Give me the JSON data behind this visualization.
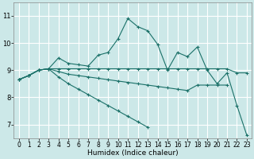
{
  "xlabel": "Humidex (Indice chaleur)",
  "bg_color": "#cce8e8",
  "grid_color": "#ffffff",
  "line_color": "#1a7068",
  "xlim": [
    -0.5,
    23.5
  ],
  "ylim": [
    6.5,
    11.5
  ],
  "yticks": [
    7,
    8,
    9,
    10,
    11
  ],
  "xticks": [
    0,
    1,
    2,
    3,
    4,
    5,
    6,
    7,
    8,
    9,
    10,
    11,
    12,
    13,
    14,
    15,
    16,
    17,
    18,
    19,
    20,
    21,
    22,
    23
  ],
  "series": [
    [
      8.65,
      8.8,
      9.0,
      9.05,
      9.45,
      9.25,
      9.2,
      9.15,
      9.55,
      9.65,
      10.15,
      10.9,
      10.6,
      10.45,
      9.95,
      9.0,
      9.65,
      9.5,
      9.85,
      9.0,
      8.5,
      8.9,
      7.7,
      6.6
    ],
    [
      8.65,
      8.8,
      9.0,
      9.05,
      9.05,
      9.05,
      9.05,
      9.05,
      9.05,
      9.05,
      9.05,
      9.05,
      9.05,
      9.05,
      9.05,
      9.05,
      9.05,
      9.05,
      9.05,
      9.05,
      9.05,
      9.05,
      8.9,
      8.9
    ],
    [
      8.65,
      8.8,
      9.0,
      9.05,
      8.95,
      8.85,
      8.8,
      8.75,
      8.7,
      8.65,
      8.6,
      8.55,
      8.5,
      8.45,
      8.4,
      8.35,
      8.3,
      8.25,
      8.45,
      8.45,
      8.45,
      8.45,
      null,
      null
    ],
    [
      8.65,
      8.8,
      9.0,
      9.05,
      8.75,
      8.5,
      8.3,
      8.1,
      7.9,
      7.7,
      7.5,
      7.3,
      7.1,
      6.9,
      null,
      null,
      null,
      null,
      null,
      null,
      null,
      null,
      null,
      null
    ]
  ]
}
